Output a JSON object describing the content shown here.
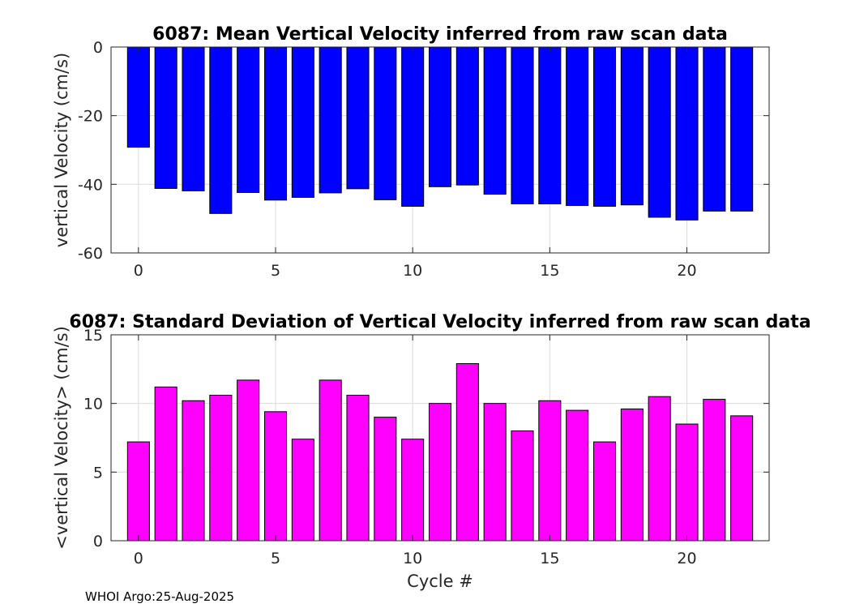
{
  "chart_data": [
    {
      "type": "bar",
      "title": "6087: Mean Vertical Velocity inferred from raw scan data",
      "xlabel": "",
      "ylabel": "vertical Velocity (cm/s)",
      "x": [
        0,
        1,
        2,
        3,
        4,
        5,
        6,
        7,
        8,
        9,
        10,
        11,
        12,
        13,
        14,
        15,
        16,
        17,
        18,
        19,
        20,
        21,
        22
      ],
      "values": [
        -29.2,
        -41.2,
        -41.9,
        -48.5,
        -42.4,
        -44.6,
        -43.8,
        -42.5,
        -41.3,
        -44.5,
        -46.4,
        -40.7,
        -40.2,
        -42.9,
        -45.7,
        -45.7,
        -46.2,
        -46.4,
        -46.0,
        -49.6,
        -50.4,
        -47.8,
        -47.8
      ],
      "color": "#0000ff",
      "xlim": [
        -1,
        23
      ],
      "ylim": [
        -60,
        0
      ],
      "xticks": [
        "0",
        "5",
        "10",
        "15",
        "20"
      ],
      "yticks": [
        "0",
        "-20",
        "-40",
        "-60"
      ],
      "grid": true
    },
    {
      "type": "bar",
      "title": "6087: Standard Deviation of Vertical Velocity inferred from raw scan data",
      "xlabel": "Cycle #",
      "ylabel": "<vertical Velocity> (cm/s)",
      "x": [
        0,
        1,
        2,
        3,
        4,
        5,
        6,
        7,
        8,
        9,
        10,
        11,
        12,
        13,
        14,
        15,
        16,
        17,
        18,
        19,
        20,
        21,
        22
      ],
      "values": [
        7.2,
        11.2,
        10.2,
        10.6,
        11.7,
        9.4,
        7.4,
        11.7,
        10.6,
        9.0,
        7.4,
        10.0,
        12.9,
        10.0,
        8.0,
        10.2,
        9.5,
        7.2,
        9.6,
        10.5,
        8.5,
        10.3,
        9.1
      ],
      "color": "#ff00ff",
      "xlim": [
        -1,
        23
      ],
      "ylim": [
        0,
        15
      ],
      "xticks": [
        "0",
        "5",
        "10",
        "15",
        "20"
      ],
      "yticks": [
        "15",
        "10",
        "5",
        "0"
      ],
      "grid": true
    }
  ],
  "footer": "WHOI Argo:25-Aug-2025"
}
